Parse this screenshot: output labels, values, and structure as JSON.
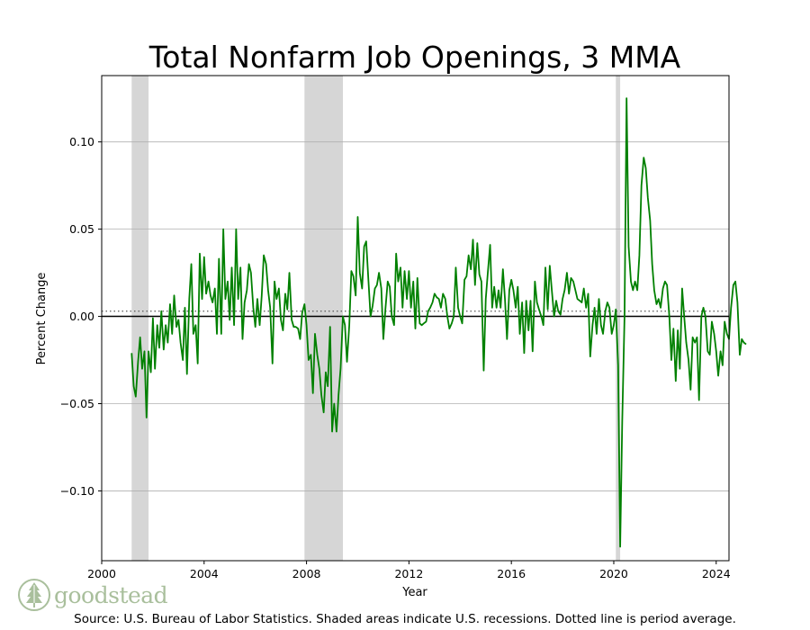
{
  "chart_data": {
    "type": "line",
    "title": "Total Nonfarm Job Openings, 3 MMA",
    "xlabel": "Year",
    "ylabel": "Percent Change",
    "xlim": [
      2000,
      2024.5
    ],
    "ylim": [
      -0.14,
      0.138
    ],
    "x_ticks": [
      2000,
      2004,
      2008,
      2012,
      2016,
      2020,
      2024
    ],
    "y_ticks": [
      -0.1,
      -0.05,
      0.0,
      0.05,
      0.1
    ],
    "y_tick_labels": [
      "−0.10",
      "−0.05",
      "0.00",
      "0.05",
      "0.10"
    ],
    "grid": "horizontal",
    "zero_line": 0.0,
    "period_average": 0.003,
    "recessions": [
      [
        2001.17,
        2001.83
      ],
      [
        2007.92,
        2009.42
      ],
      [
        2020.08,
        2020.25
      ]
    ],
    "series": [
      {
        "color": "#008000",
        "points": [
          [
            2001.17,
            -0.021
          ],
          [
            2001.25,
            -0.04
          ],
          [
            2001.33,
            -0.046
          ],
          [
            2001.42,
            -0.026
          ],
          [
            2001.5,
            -0.012
          ],
          [
            2001.58,
            -0.03
          ],
          [
            2001.67,
            -0.02
          ],
          [
            2001.75,
            -0.058
          ],
          [
            2001.83,
            -0.02
          ],
          [
            2001.92,
            -0.032
          ],
          [
            2002.0,
            -0.001
          ],
          [
            2002.08,
            -0.03
          ],
          [
            2002.17,
            -0.005
          ],
          [
            2002.25,
            -0.018
          ],
          [
            2002.33,
            0.003
          ],
          [
            2002.42,
            -0.019
          ],
          [
            2002.5,
            -0.005
          ],
          [
            2002.58,
            -0.015
          ],
          [
            2002.67,
            0.007
          ],
          [
            2002.75,
            -0.01
          ],
          [
            2002.83,
            0.012
          ],
          [
            2002.92,
            -0.006
          ],
          [
            2003.0,
            -0.002
          ],
          [
            2003.08,
            -0.015
          ],
          [
            2003.17,
            -0.025
          ],
          [
            2003.25,
            0.005
          ],
          [
            2003.33,
            -0.033
          ],
          [
            2003.42,
            0.01
          ],
          [
            2003.5,
            0.03
          ],
          [
            2003.58,
            -0.01
          ],
          [
            2003.67,
            -0.005
          ],
          [
            2003.75,
            -0.027
          ],
          [
            2003.83,
            0.036
          ],
          [
            2003.92,
            0.01
          ],
          [
            2004.0,
            0.034
          ],
          [
            2004.08,
            0.013
          ],
          [
            2004.17,
            0.02
          ],
          [
            2004.25,
            0.012
          ],
          [
            2004.33,
            0.008
          ],
          [
            2004.42,
            0.016
          ],
          [
            2004.5,
            -0.01
          ],
          [
            2004.58,
            0.033
          ],
          [
            2004.67,
            -0.01
          ],
          [
            2004.75,
            0.05
          ],
          [
            2004.83,
            0.01
          ],
          [
            2004.92,
            0.02
          ],
          [
            2005.0,
            -0.002
          ],
          [
            2005.08,
            0.028
          ],
          [
            2005.17,
            -0.005
          ],
          [
            2005.25,
            0.05
          ],
          [
            2005.33,
            0.01
          ],
          [
            2005.42,
            0.028
          ],
          [
            2005.5,
            -0.013
          ],
          [
            2005.58,
            0.008
          ],
          [
            2005.67,
            0.015
          ],
          [
            2005.75,
            0.03
          ],
          [
            2005.83,
            0.025
          ],
          [
            2005.92,
            0.005
          ],
          [
            2006.0,
            -0.006
          ],
          [
            2006.08,
            0.01
          ],
          [
            2006.17,
            -0.005
          ],
          [
            2006.25,
            0.012
          ],
          [
            2006.33,
            0.035
          ],
          [
            2006.42,
            0.03
          ],
          [
            2006.5,
            0.015
          ],
          [
            2006.58,
            0.005
          ],
          [
            2006.67,
            -0.027
          ],
          [
            2006.75,
            0.02
          ],
          [
            2006.83,
            0.01
          ],
          [
            2006.92,
            0.016
          ],
          [
            2007.0,
            -0.002
          ],
          [
            2007.08,
            -0.008
          ],
          [
            2007.17,
            0.013
          ],
          [
            2007.25,
            0.004
          ],
          [
            2007.33,
            0.025
          ],
          [
            2007.42,
            -0.002
          ],
          [
            2007.5,
            -0.006
          ],
          [
            2007.58,
            -0.006
          ],
          [
            2007.67,
            -0.007
          ],
          [
            2007.75,
            -0.013
          ],
          [
            2007.83,
            0.002
          ],
          [
            2007.92,
            0.007
          ],
          [
            2008.0,
            -0.005
          ],
          [
            2008.08,
            -0.025
          ],
          [
            2008.17,
            -0.022
          ],
          [
            2008.25,
            -0.044
          ],
          [
            2008.33,
            -0.01
          ],
          [
            2008.42,
            -0.022
          ],
          [
            2008.5,
            -0.03
          ],
          [
            2008.58,
            -0.045
          ],
          [
            2008.67,
            -0.055
          ],
          [
            2008.75,
            -0.032
          ],
          [
            2008.83,
            -0.04
          ],
          [
            2008.92,
            -0.006
          ],
          [
            2009.0,
            -0.066
          ],
          [
            2009.08,
            -0.05
          ],
          [
            2009.17,
            -0.066
          ],
          [
            2009.25,
            -0.045
          ],
          [
            2009.33,
            -0.03
          ],
          [
            2009.42,
            0.0
          ],
          [
            2009.5,
            -0.005
          ],
          [
            2009.58,
            -0.026
          ],
          [
            2009.67,
            -0.005
          ],
          [
            2009.75,
            0.026
          ],
          [
            2009.83,
            0.023
          ],
          [
            2009.92,
            0.012
          ],
          [
            2010.0,
            0.057
          ],
          [
            2010.08,
            0.025
          ],
          [
            2010.17,
            0.016
          ],
          [
            2010.25,
            0.04
          ],
          [
            2010.33,
            0.043
          ],
          [
            2010.42,
            0.02
          ],
          [
            2010.5,
            0.0
          ],
          [
            2010.58,
            0.006
          ],
          [
            2010.67,
            0.016
          ],
          [
            2010.75,
            0.018
          ],
          [
            2010.83,
            0.025
          ],
          [
            2010.92,
            0.016
          ],
          [
            2011.0,
            -0.013
          ],
          [
            2011.08,
            0.004
          ],
          [
            2011.17,
            0.02
          ],
          [
            2011.25,
            0.017
          ],
          [
            2011.33,
            0.0
          ],
          [
            2011.42,
            -0.005
          ],
          [
            2011.5,
            0.036
          ],
          [
            2011.58,
            0.02
          ],
          [
            2011.67,
            0.028
          ],
          [
            2011.75,
            0.005
          ],
          [
            2011.83,
            0.026
          ],
          [
            2011.92,
            0.01
          ],
          [
            2012.0,
            0.026
          ],
          [
            2012.08,
            0.005
          ],
          [
            2012.17,
            0.02
          ],
          [
            2012.25,
            -0.007
          ],
          [
            2012.33,
            0.022
          ],
          [
            2012.42,
            -0.004
          ],
          [
            2012.5,
            -0.005
          ],
          [
            2012.58,
            -0.004
          ],
          [
            2012.67,
            -0.003
          ],
          [
            2012.75,
            0.003
          ],
          [
            2012.83,
            0.005
          ],
          [
            2012.92,
            0.008
          ],
          [
            2013.0,
            0.013
          ],
          [
            2013.08,
            0.011
          ],
          [
            2013.17,
            0.01
          ],
          [
            2013.25,
            0.005
          ],
          [
            2013.33,
            0.013
          ],
          [
            2013.42,
            0.01
          ],
          [
            2013.5,
            0.0
          ],
          [
            2013.58,
            -0.007
          ],
          [
            2013.67,
            -0.004
          ],
          [
            2013.75,
            0.0
          ],
          [
            2013.83,
            0.028
          ],
          [
            2013.92,
            0.005
          ],
          [
            2014.0,
            0.0
          ],
          [
            2014.08,
            -0.004
          ],
          [
            2014.17,
            0.021
          ],
          [
            2014.25,
            0.023
          ],
          [
            2014.33,
            0.035
          ],
          [
            2014.42,
            0.027
          ],
          [
            2014.5,
            0.044
          ],
          [
            2014.58,
            0.018
          ],
          [
            2014.67,
            0.042
          ],
          [
            2014.75,
            0.024
          ],
          [
            2014.83,
            0.02
          ],
          [
            2014.92,
            -0.031
          ],
          [
            2015.0,
            0.01
          ],
          [
            2015.08,
            0.025
          ],
          [
            2015.17,
            0.041
          ],
          [
            2015.25,
            0.005
          ],
          [
            2015.33,
            0.017
          ],
          [
            2015.42,
            0.005
          ],
          [
            2015.5,
            0.015
          ],
          [
            2015.58,
            0.005
          ],
          [
            2015.67,
            0.027
          ],
          [
            2015.75,
            0.01
          ],
          [
            2015.83,
            -0.013
          ],
          [
            2015.92,
            0.015
          ],
          [
            2016.0,
            0.021
          ],
          [
            2016.08,
            0.015
          ],
          [
            2016.17,
            0.005
          ],
          [
            2016.25,
            0.017
          ],
          [
            2016.33,
            -0.01
          ],
          [
            2016.42,
            0.008
          ],
          [
            2016.5,
            -0.021
          ],
          [
            2016.58,
            0.009
          ],
          [
            2016.67,
            -0.008
          ],
          [
            2016.75,
            0.009
          ],
          [
            2016.83,
            -0.02
          ],
          [
            2016.92,
            0.02
          ],
          [
            2017.0,
            0.008
          ],
          [
            2017.08,
            0.004
          ],
          [
            2017.17,
            0.0
          ],
          [
            2017.25,
            -0.005
          ],
          [
            2017.33,
            0.028
          ],
          [
            2017.42,
            0.004
          ],
          [
            2017.5,
            0.029
          ],
          [
            2017.58,
            0.015
          ],
          [
            2017.67,
            0.0
          ],
          [
            2017.75,
            0.009
          ],
          [
            2017.83,
            0.003
          ],
          [
            2017.92,
            0.001
          ],
          [
            2018.0,
            0.01
          ],
          [
            2018.08,
            0.015
          ],
          [
            2018.17,
            0.025
          ],
          [
            2018.25,
            0.013
          ],
          [
            2018.33,
            0.022
          ],
          [
            2018.42,
            0.02
          ],
          [
            2018.5,
            0.015
          ],
          [
            2018.58,
            0.01
          ],
          [
            2018.67,
            0.009
          ],
          [
            2018.75,
            0.008
          ],
          [
            2018.83,
            0.016
          ],
          [
            2018.92,
            0.005
          ],
          [
            2019.0,
            0.013
          ],
          [
            2019.08,
            -0.023
          ],
          [
            2019.17,
            -0.005
          ],
          [
            2019.25,
            0.005
          ],
          [
            2019.33,
            -0.01
          ],
          [
            2019.42,
            0.01
          ],
          [
            2019.5,
            -0.005
          ],
          [
            2019.58,
            -0.01
          ],
          [
            2019.67,
            0.003
          ],
          [
            2019.75,
            0.008
          ],
          [
            2019.83,
            0.005
          ],
          [
            2019.92,
            -0.01
          ],
          [
            2020.0,
            -0.005
          ],
          [
            2020.08,
            0.004
          ],
          [
            2020.17,
            -0.028
          ],
          [
            2020.25,
            -0.132
          ],
          [
            2020.33,
            -0.06
          ],
          [
            2020.42,
            0.0
          ],
          [
            2020.5,
            0.125
          ],
          [
            2020.58,
            0.04
          ],
          [
            2020.67,
            0.02
          ],
          [
            2020.75,
            0.015
          ],
          [
            2020.83,
            0.02
          ],
          [
            2020.92,
            0.015
          ],
          [
            2021.0,
            0.035
          ],
          [
            2021.08,
            0.075
          ],
          [
            2021.17,
            0.091
          ],
          [
            2021.25,
            0.085
          ],
          [
            2021.33,
            0.068
          ],
          [
            2021.42,
            0.055
          ],
          [
            2021.5,
            0.03
          ],
          [
            2021.58,
            0.015
          ],
          [
            2021.67,
            0.007
          ],
          [
            2021.75,
            0.01
          ],
          [
            2021.83,
            0.005
          ],
          [
            2021.92,
            0.016
          ],
          [
            2022.0,
            0.02
          ],
          [
            2022.08,
            0.018
          ],
          [
            2022.17,
            0.0
          ],
          [
            2022.25,
            -0.025
          ],
          [
            2022.33,
            -0.007
          ],
          [
            2022.42,
            -0.037
          ],
          [
            2022.5,
            -0.008
          ],
          [
            2022.58,
            -0.03
          ],
          [
            2022.67,
            0.016
          ],
          [
            2022.75,
            0.0
          ],
          [
            2022.83,
            -0.015
          ],
          [
            2022.92,
            -0.025
          ],
          [
            2023.0,
            -0.042
          ],
          [
            2023.08,
            -0.012
          ],
          [
            2023.17,
            -0.015
          ],
          [
            2023.25,
            -0.012
          ],
          [
            2023.33,
            -0.048
          ],
          [
            2023.42,
            0.0
          ],
          [
            2023.5,
            0.005
          ],
          [
            2023.58,
            0.0
          ],
          [
            2023.67,
            -0.02
          ],
          [
            2023.75,
            -0.022
          ],
          [
            2023.83,
            -0.003
          ],
          [
            2023.92,
            -0.01
          ],
          [
            2024.0,
            -0.02
          ],
          [
            2024.08,
            -0.034
          ],
          [
            2024.17,
            -0.02
          ],
          [
            2024.25,
            -0.028
          ],
          [
            2024.33,
            -0.003
          ],
          [
            2024.42,
            -0.01
          ],
          [
            2024.5,
            -0.013
          ],
          [
            2024.58,
            0.005
          ],
          [
            2024.67,
            0.018
          ],
          [
            2024.75,
            0.02
          ],
          [
            2024.83,
            0.008
          ],
          [
            2024.92,
            -0.022
          ],
          [
            2025.0,
            -0.013
          ],
          [
            2025.08,
            -0.015
          ],
          [
            2025.17,
            -0.016
          ]
        ]
      }
    ]
  },
  "source_text": "Source: U.S. Bureau of Labor Statistics. Shaded areas indicate U.S. recessions. Dotted line is period average.",
  "logo": {
    "text": "goodstead",
    "color": "#a9bf9c"
  }
}
